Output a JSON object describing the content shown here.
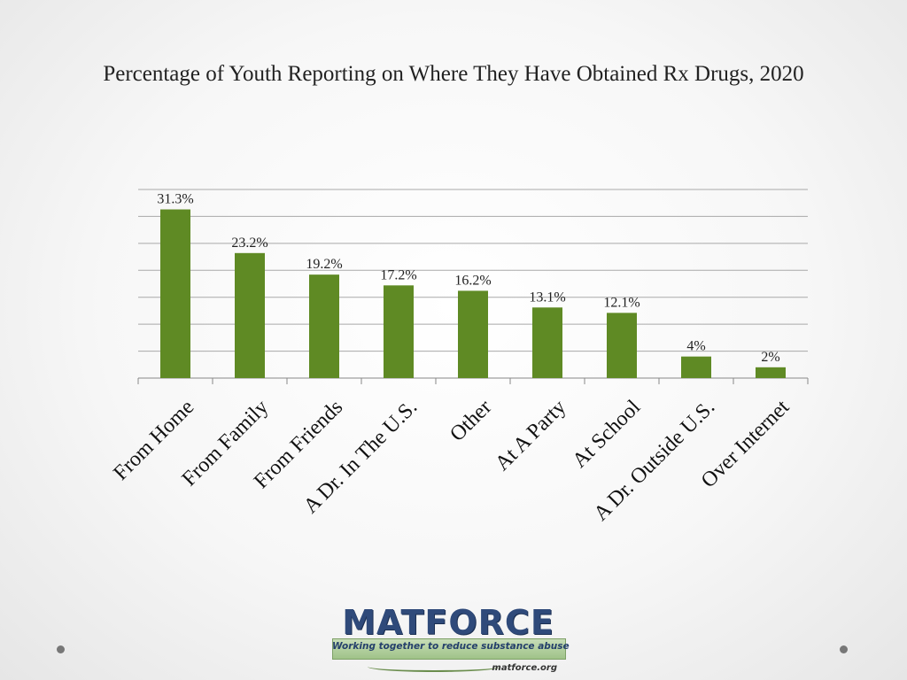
{
  "slide": {
    "title": "Percentage of Youth Reporting on Where They Have Obtained Rx Drugs,  2020"
  },
  "colors": {
    "bar": "#5f8a24",
    "grid": "#a9a9a9",
    "logo_text": "#2f4a7a",
    "logo_band": "#b3d19f"
  },
  "chart_data": {
    "type": "bar",
    "title": "Percentage of Youth Reporting on Where They Have Obtained Rx Drugs,  2020",
    "categories": [
      "From Home",
      "From Family",
      "From Friends",
      "A Dr. In The U.S.",
      "Other",
      "At A Party",
      "At School",
      "A Dr. Outside U.S.",
      "Over Internet"
    ],
    "values": [
      31.3,
      23.2,
      19.2,
      17.2,
      16.2,
      13.1,
      12.1,
      4,
      2
    ],
    "data_labels": [
      "31.3%",
      "23.2%",
      "19.2%",
      "17.2%",
      "16.2%",
      "13.1%",
      "12.1%",
      "4%",
      "2%"
    ],
    "ylim": [
      0,
      35
    ],
    "gridline_step": 5,
    "grid": true,
    "xlabel": "",
    "ylabel": "",
    "legend": "none"
  },
  "logo": {
    "name": "MATFORCE",
    "tagline": "Working together to reduce substance abuse",
    "url": "matforce.org"
  }
}
